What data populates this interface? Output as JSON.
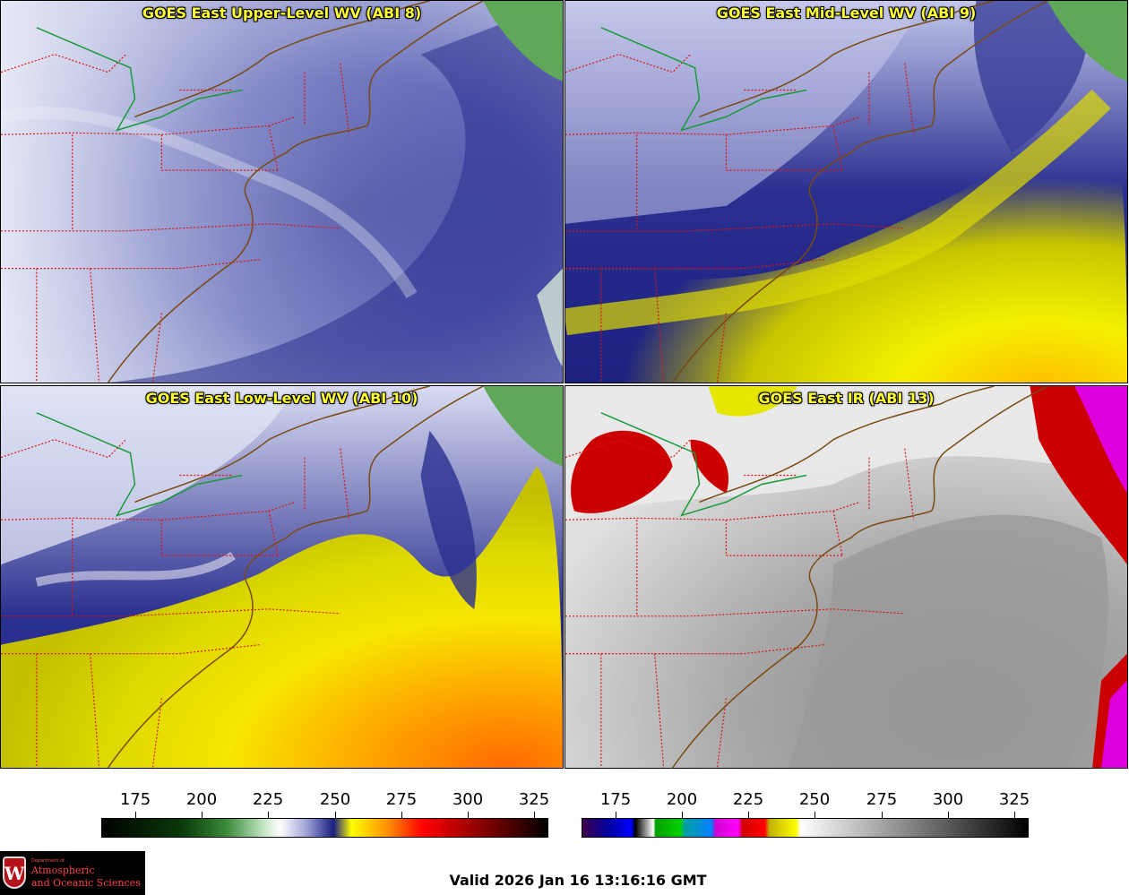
{
  "panels": [
    {
      "title": "GOES East Upper-Level WV (ABI 8)"
    },
    {
      "title": "GOES East Mid-Level WV (ABI 9)"
    },
    {
      "title": "GOES East Low-Level WV (ABI 10)"
    },
    {
      "title": "GOES East IR (ABI 13)"
    }
  ],
  "colorbars": [
    {
      "ticks": [
        "175",
        "200",
        "225",
        "250",
        "275",
        "300",
        "325"
      ]
    },
    {
      "ticks": [
        "175",
        "200",
        "225",
        "250",
        "275",
        "300",
        "325"
      ]
    }
  ],
  "footer": {
    "valid_text": "Valid 2026 Jan 16 13:16:16 GMT"
  },
  "logo": {
    "dept": "Department of",
    "line1": "Atmospheric",
    "line2": "and Oceanic Sciences",
    "shield": "W"
  },
  "colors": {
    "state_borders": "#e01010",
    "coast": "#7a4a10",
    "land_canada": "#5fa85a",
    "title": "#ffff33"
  }
}
